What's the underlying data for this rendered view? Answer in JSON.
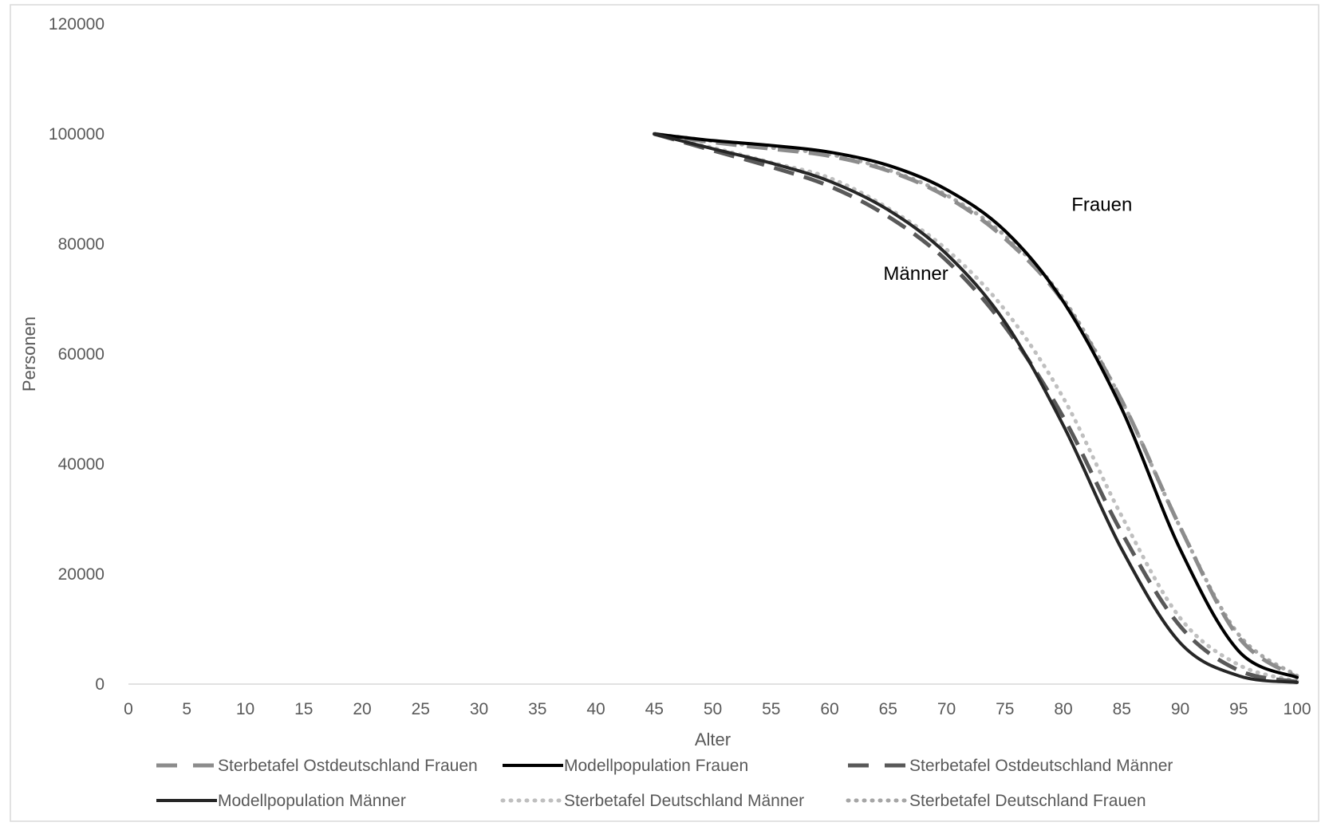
{
  "chart_data": {
    "type": "line",
    "title": "",
    "xlabel": "Alter",
    "ylabel": "Personen",
    "xlim": [
      0,
      100
    ],
    "ylim": [
      0,
      120000
    ],
    "x_ticks": [
      "0",
      "5",
      "10",
      "15",
      "20",
      "25",
      "30",
      "35",
      "40",
      "45",
      "50",
      "55",
      "60",
      "65",
      "70",
      "75",
      "80",
      "85",
      "90",
      "95",
      "100"
    ],
    "y_ticks": [
      "0",
      "20000",
      "40000",
      "60000",
      "80000",
      "100000",
      "120000"
    ],
    "grid": false,
    "legend_position": "bottom",
    "x": [
      45,
      50,
      55,
      60,
      65,
      70,
      75,
      80,
      85,
      90,
      95,
      100
    ],
    "series": [
      {
        "name": "Sterbetafel Ostdeutschland Frauen",
        "color": "#8c8c8c",
        "dash": "long-dash",
        "values": [
          100000,
          98500,
          97300,
          96000,
          93300,
          88600,
          81000,
          69500,
          51500,
          28500,
          8500,
          1200
        ]
      },
      {
        "name": "Modellpopulation Frauen",
        "color": "#000000",
        "dash": "solid",
        "values": [
          100000,
          98800,
          97900,
          96700,
          94300,
          89900,
          82400,
          69500,
          50000,
          24500,
          6000,
          1200
        ]
      },
      {
        "name": "Sterbetafel Ostdeutschland Männer",
        "color": "#595959",
        "dash": "long-dash",
        "values": [
          100000,
          97000,
          94000,
          90500,
          85000,
          77000,
          65000,
          48500,
          27500,
          10500,
          2500,
          400
        ]
      },
      {
        "name": "Modellpopulation Männer",
        "color": "#262626",
        "dash": "solid",
        "values": [
          100000,
          97300,
          94700,
          91400,
          86200,
          78200,
          65800,
          47000,
          24500,
          7500,
          1500,
          300
        ]
      },
      {
        "name": "Sterbetafel Deutschland Männer",
        "color": "#bfbfbf",
        "dash": "dotted",
        "values": [
          100000,
          97500,
          94800,
          92000,
          86500,
          79000,
          68000,
          52000,
          30500,
          12000,
          3500,
          500
        ]
      },
      {
        "name": "Sterbetafel Deutschland Frauen",
        "color": "#a6a6a6",
        "dash": "dotted",
        "values": [
          100000,
          98700,
          97500,
          96300,
          93500,
          88900,
          81500,
          70000,
          51500,
          28500,
          9000,
          1500
        ]
      }
    ],
    "annotations": [
      {
        "text": "Frauen",
        "x": 80.7,
        "y": 86000
      },
      {
        "text": "Männer",
        "x": 64.6,
        "y": 73500
      }
    ]
  }
}
